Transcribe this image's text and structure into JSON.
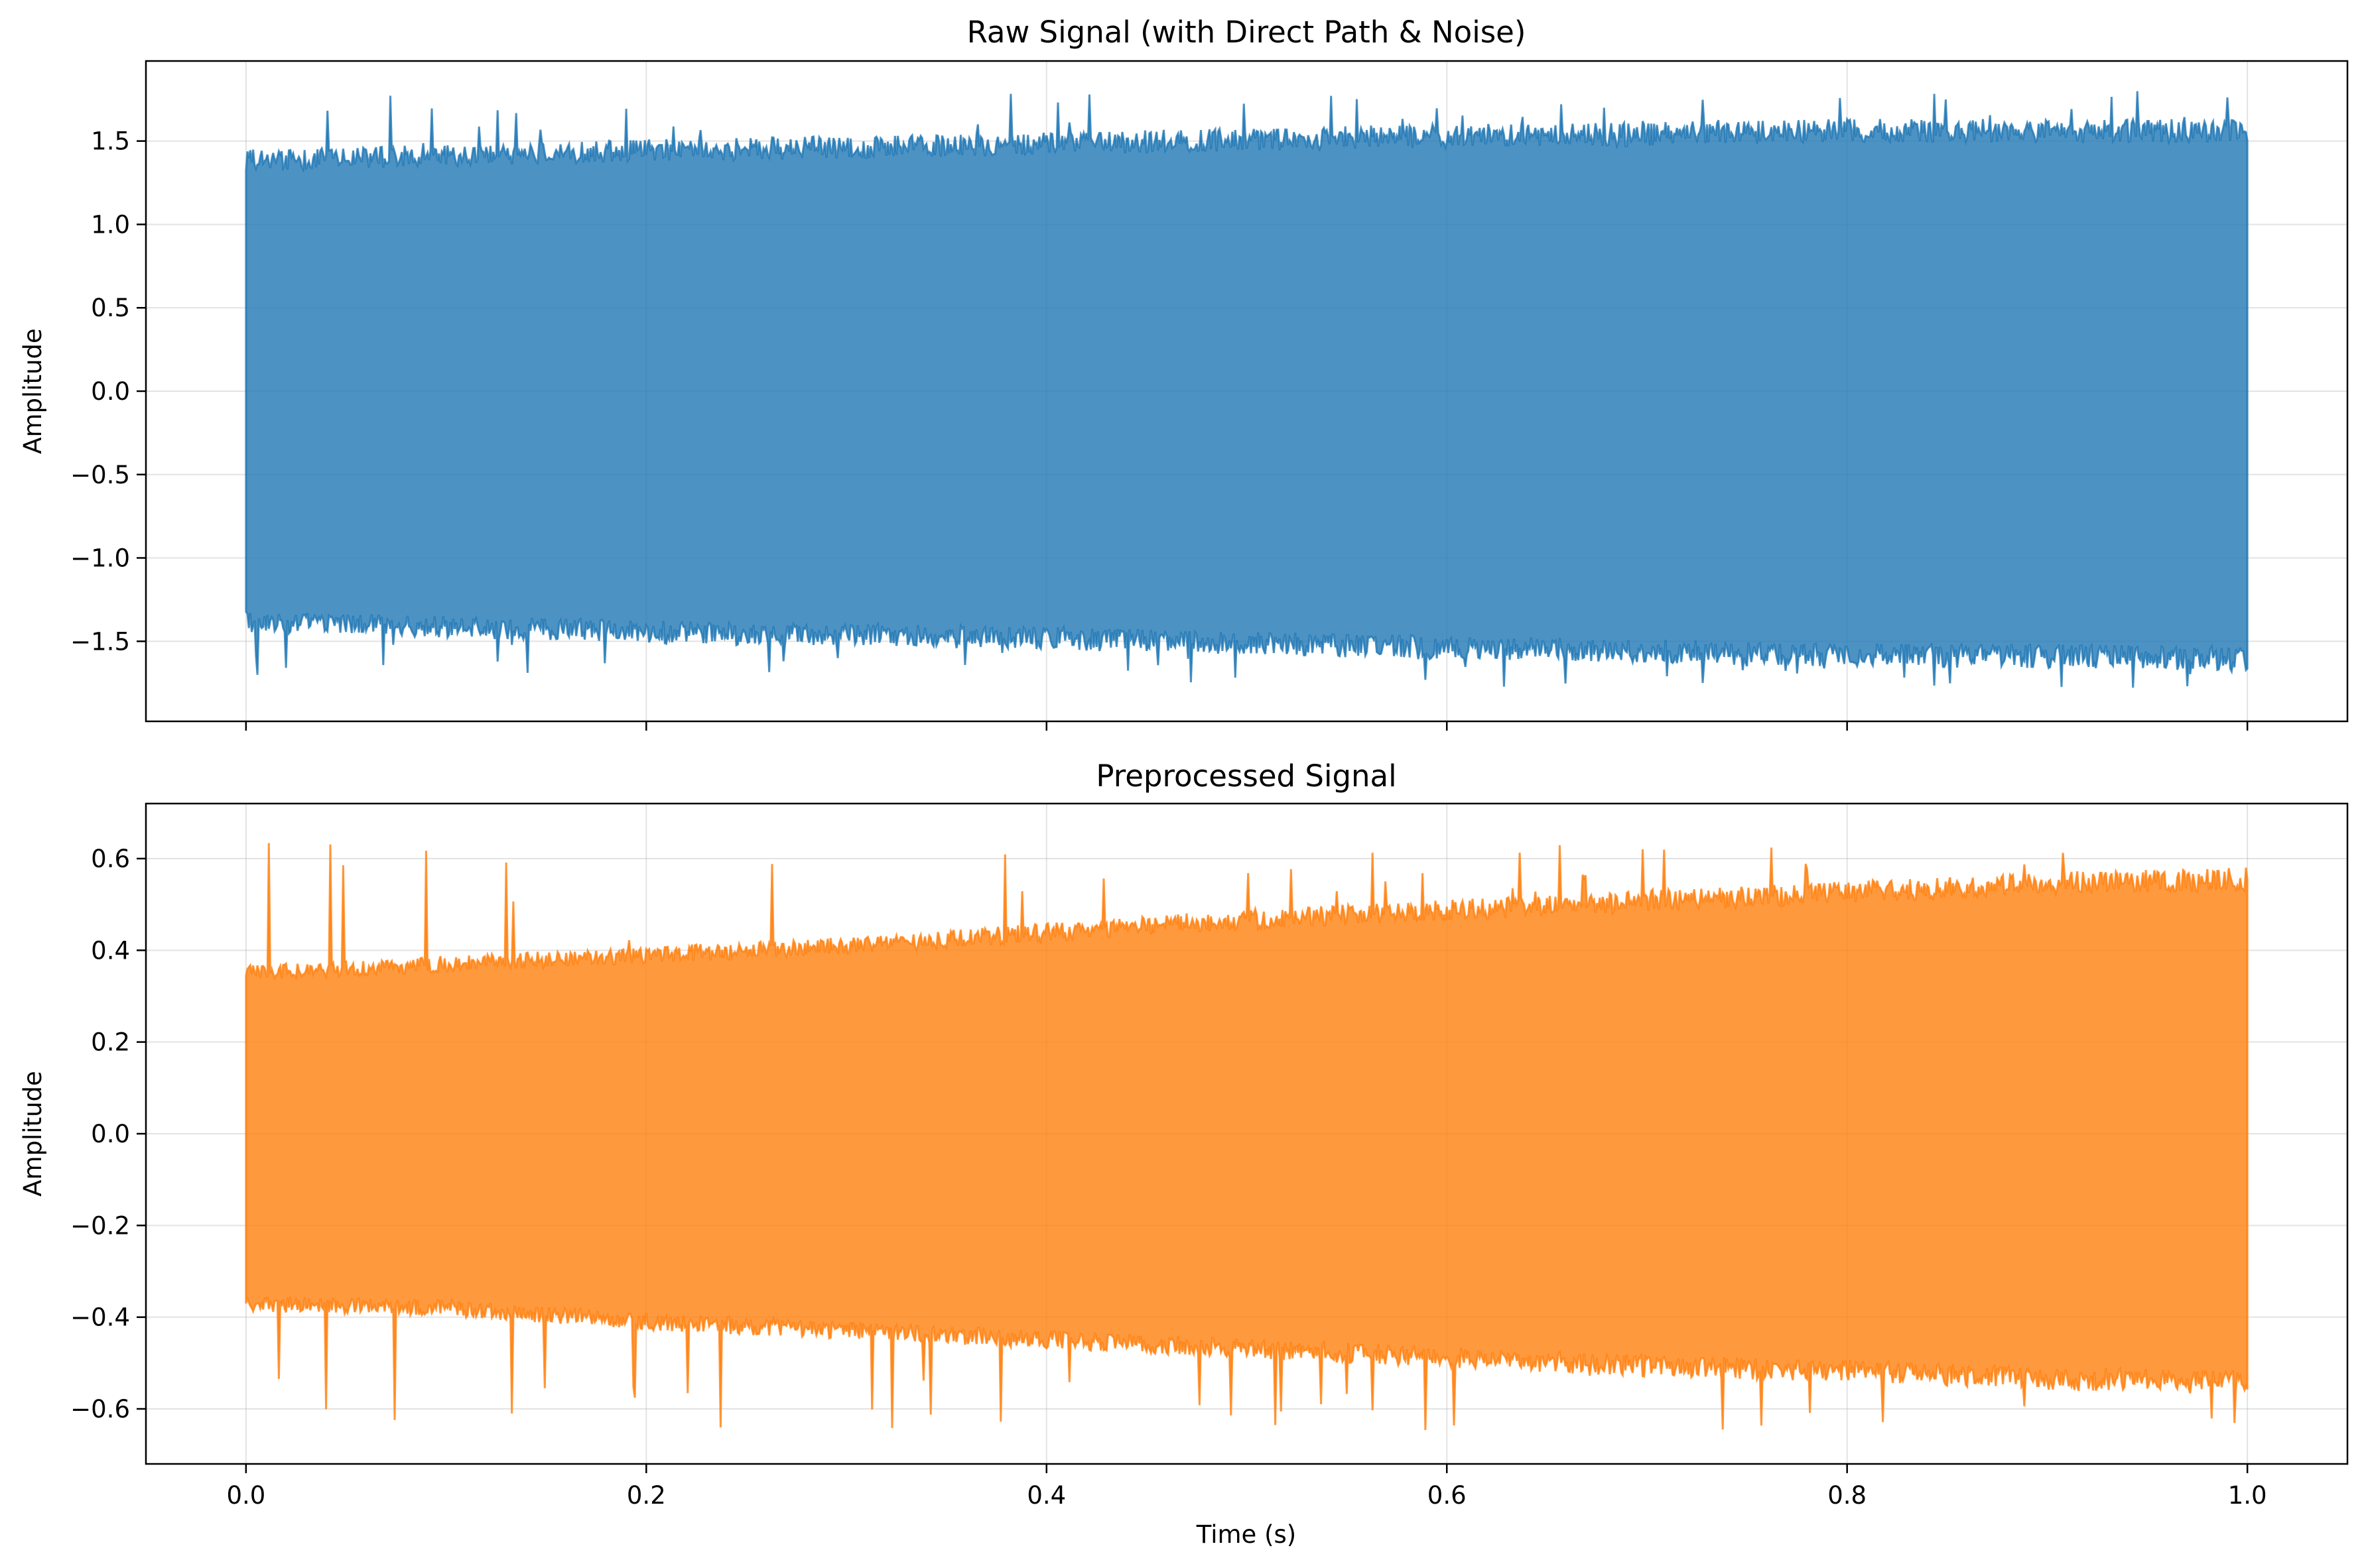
{
  "chart_data": [
    {
      "type": "line",
      "title": "Raw Signal (with Direct Path & Noise)",
      "xlabel": "",
      "ylabel": "Amplitude",
      "xlim": [
        -0.05,
        1.05
      ],
      "ylim": [
        -1.98,
        1.98
      ],
      "xticks": [
        0.0,
        0.2,
        0.4,
        0.6,
        0.8,
        1.0
      ],
      "xtick_labels_visible": false,
      "yticks": [
        -1.5,
        -1.0,
        -0.5,
        0.0,
        0.5,
        1.0,
        1.5
      ],
      "ytick_labels": [
        "−1.5",
        "−1.0",
        "−0.5",
        "0.0",
        "0.5",
        "1.0",
        "1.5"
      ],
      "grid": true,
      "color": "#1f77b4",
      "series": [
        {
          "x_range": [
            0.0,
            1.0
          ],
          "envelope": {
            "x": [
              0.0,
              0.1,
              0.2,
              0.3,
              0.4,
              0.5,
              0.6,
              0.7,
              0.8,
              0.9,
              1.0
            ],
            "upper": [
              1.42,
              1.45,
              1.48,
              1.5,
              1.52,
              1.55,
              1.57,
              1.58,
              1.6,
              1.6,
              1.6
            ],
            "lower": [
              -1.42,
              -1.45,
              -1.48,
              -1.5,
              -1.52,
              -1.55,
              -1.58,
              -1.6,
              -1.62,
              -1.63,
              -1.65
            ]
          },
          "max": 1.8,
          "min": -1.78
        }
      ]
    },
    {
      "type": "line",
      "title": "Preprocessed Signal",
      "xlabel": "Time (s)",
      "ylabel": "Amplitude",
      "xlim": [
        -0.05,
        1.05
      ],
      "ylim": [
        -0.72,
        0.72
      ],
      "xticks": [
        0.0,
        0.2,
        0.4,
        0.6,
        0.8,
        1.0
      ],
      "xtick_labels": [
        "0.0",
        "0.2",
        "0.4",
        "0.6",
        "0.8",
        "1.0"
      ],
      "yticks": [
        -0.6,
        -0.4,
        -0.2,
        0.0,
        0.2,
        0.4,
        0.6
      ],
      "ytick_labels": [
        "−0.6",
        "−0.4",
        "−0.2",
        "0.0",
        "0.2",
        "0.4",
        "0.6"
      ],
      "grid": true,
      "color": "#ff7f0e",
      "series": [
        {
          "x_range": [
            0.0,
            1.0
          ],
          "envelope": {
            "x": [
              0.0,
              0.1,
              0.2,
              0.3,
              0.4,
              0.5,
              0.6,
              0.7,
              0.8,
              0.9,
              1.0
            ],
            "upper": [
              0.36,
              0.38,
              0.4,
              0.42,
              0.45,
              0.48,
              0.5,
              0.52,
              0.54,
              0.56,
              0.57
            ],
            "lower": [
              -0.38,
              -0.39,
              -0.42,
              -0.44,
              -0.46,
              -0.48,
              -0.5,
              -0.52,
              -0.53,
              -0.55,
              -0.55
            ]
          },
          "max": 0.64,
          "min": -0.65
        }
      ]
    }
  ]
}
